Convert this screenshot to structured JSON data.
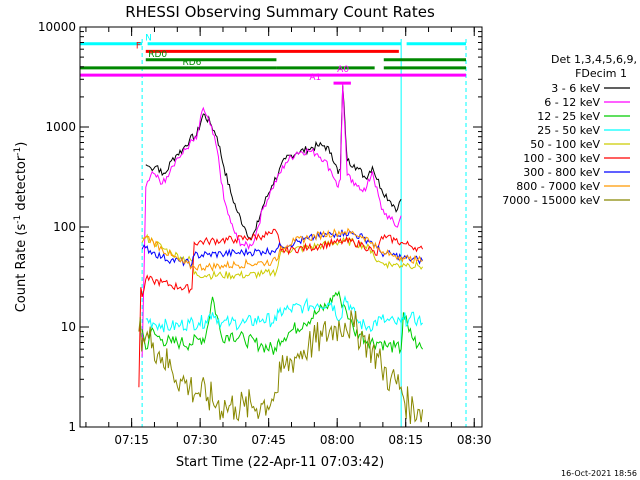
{
  "chart_data": {
    "type": "line",
    "title": "RHESSI Observing Summary Count Rates",
    "xlabel": "Start Time (22-Apr-11 07:03:42)",
    "ylabel": "Count Rate (s",
    "ylabel_sup1": "-1",
    "ylabel_mid": " detector",
    "ylabel_sup2": "-1",
    "ylabel_end": ")",
    "yscale": "log",
    "ylim": [
      1,
      10000
    ],
    "xlim_minutes": [
      0,
      88
    ],
    "x_ticks": [
      {
        "label": "07:15",
        "m": 11.3
      },
      {
        "label": "07:30",
        "m": 26.3
      },
      {
        "label": "07:45",
        "m": 41.3
      },
      {
        "label": "08:00",
        "m": 56.3
      },
      {
        "label": "08:15",
        "m": 71.3
      },
      {
        "label": "08:30",
        "m": 86.3
      }
    ],
    "y_ticks": [
      {
        "label": "1",
        "v": 1
      },
      {
        "label": "10",
        "v": 10
      },
      {
        "label": "100",
        "v": 100
      },
      {
        "label": "1000",
        "v": 1000
      },
      {
        "label": "10000",
        "v": 10000
      }
    ],
    "legend_header": [
      "Det 1,3,4,5,6,9,",
      "FDecim 1"
    ],
    "footer": "16-Oct-2021 18:56",
    "flags": [
      {
        "label": "N",
        "color": "#00ffff",
        "label_at": 15.0,
        "level": 6800,
        "segments": [
          [
            0,
            13.6
          ],
          [
            14.8,
            70.3
          ],
          [
            71.5,
            84.5
          ]
        ]
      },
      {
        "label": "F",
        "color": "#ff0000",
        "label_at": 12.8,
        "level": 5700,
        "segments": [
          [
            14.4,
            69.8
          ]
        ]
      },
      {
        "label": "RD0",
        "color": "#008800",
        "label_at": 17.0,
        "level": 4700,
        "segments": [
          [
            14.4,
            43.0
          ],
          [
            66.5,
            84.5
          ]
        ]
      },
      {
        "label": "RD6",
        "color": "#008800",
        "label_at": 24.5,
        "level": 3900,
        "segments": [
          [
            0,
            43.0
          ],
          [
            43.0,
            64.5
          ],
          [
            66.5,
            84.5
          ]
        ]
      },
      {
        "label": "A0",
        "color": "#ff00ff",
        "label_at": 57.6,
        "level": 3300,
        "segments": [
          [
            0,
            84.5
          ]
        ]
      },
      {
        "label": "A1",
        "color": "#ff00ff",
        "label_at": 51.5,
        "level": 2750,
        "segments": [
          [
            55.5,
            59.3
          ]
        ]
      }
    ],
    "saa_markers_minutes": [
      0,
      13.6,
      70.3,
      84.5
    ],
    "series": [
      {
        "name": "3 - 6 keV",
        "color": "#000000",
        "x": [
          14.4,
          15.5,
          17,
          18,
          19,
          20,
          21,
          22.5,
          24,
          25.5,
          27,
          28.5,
          30,
          31.5,
          33,
          34.5,
          36,
          37.5,
          38.5,
          40,
          42,
          45,
          47.5,
          50,
          52,
          53.5,
          55,
          56,
          56.5,
          57,
          57.5,
          58.5,
          60,
          61,
          62.5,
          64,
          66,
          68,
          69.5,
          70.3
        ],
        "y": [
          420,
          390,
          410,
          330,
          360,
          460,
          520,
          600,
          750,
          820,
          1350,
          1100,
          800,
          400,
          220,
          140,
          100,
          75,
          95,
          160,
          260,
          480,
          560,
          600,
          650,
          650,
          550,
          420,
          340,
          380,
          2600,
          460,
          420,
          380,
          310,
          400,
          240,
          180,
          150,
          190
        ]
      },
      {
        "name": "6 - 12 keV",
        "color": "#ff00ff",
        "x": [
          13.6,
          14.4,
          15.5,
          17,
          18,
          19,
          20,
          21,
          22.5,
          24,
          25.5,
          27,
          28.5,
          30,
          31.5,
          33,
          34.5,
          36,
          37.5,
          38.5,
          40,
          42,
          45,
          47.5,
          50,
          52,
          53.5,
          55,
          56,
          56.5,
          57,
          57.5,
          58.5,
          60,
          61,
          62.5,
          64,
          66,
          68,
          69.5,
          70.3
        ],
        "y": [
          5,
          250,
          330,
          330,
          270,
          320,
          400,
          470,
          540,
          680,
          760,
          1550,
          1050,
          600,
          190,
          110,
          75,
          65,
          65,
          85,
          150,
          240,
          440,
          560,
          580,
          540,
          470,
          360,
          290,
          250,
          300,
          2700,
          330,
          260,
          260,
          230,
          360,
          150,
          120,
          100,
          130
        ]
      },
      {
        "name": "12 - 25 keV",
        "color": "#00cc00",
        "x": [
          13.6,
          14.4,
          15.5,
          17,
          18,
          20,
          22,
          24,
          26,
          27.5,
          29,
          31,
          33,
          36,
          40,
          43,
          43.5,
          46,
          49,
          52,
          54.5,
          56,
          57,
          58,
          59,
          60,
          61.5,
          63,
          66,
          67,
          69,
          70.3,
          70.8,
          72,
          74,
          75
        ],
        "y": [
          9.5,
          6,
          9,
          8,
          7.5,
          7,
          7,
          6.8,
          7.5,
          8,
          20,
          8,
          8.5,
          7.5,
          6.5,
          5.8,
          7.5,
          9,
          11,
          14,
          17,
          22,
          19,
          16,
          12,
          9,
          8.5,
          7.2,
          7,
          6.5,
          6.3,
          6,
          14,
          9,
          6.5,
          6
        ]
      },
      {
        "name": "25 - 50 keV",
        "color": "#00ffff",
        "x": [
          14.4,
          16,
          18,
          20,
          22,
          24,
          26,
          27.5,
          29,
          31,
          33,
          36,
          40,
          43,
          43.5,
          46,
          49,
          52,
          55,
          57,
          58,
          59.5,
          61,
          63,
          66,
          67,
          69,
          70.3,
          70.8,
          72,
          74,
          75
        ],
        "y": [
          12,
          11,
          10.5,
          10,
          10.5,
          11,
          11,
          11.5,
          14,
          11,
          11,
          11,
          12,
          11.5,
          14,
          15,
          16,
          17,
          17.5,
          12,
          20,
          15,
          11,
          10,
          12,
          11.5,
          11,
          11,
          12,
          12,
          12,
          11
        ]
      },
      {
        "name": "50 - 100 keV",
        "color": "#cccc00",
        "x": [
          13.6,
          14.4,
          16,
          18,
          20,
          22,
          24.5,
          25,
          28,
          31,
          34,
          37,
          40,
          42,
          43,
          44,
          47,
          50,
          53,
          56,
          58,
          60,
          62,
          64,
          65,
          66,
          67,
          69,
          70.3,
          70.8,
          72,
          74,
          75
        ],
        "y": [
          70,
          78,
          72,
          62,
          55,
          50,
          46,
          34,
          33,
          33,
          33,
          33,
          34,
          35,
          36,
          58,
          60,
          62,
          66,
          70,
          72,
          70,
          66,
          58,
          45,
          44,
          43,
          42,
          41,
          43,
          42,
          41,
          40
        ]
      },
      {
        "name": "100 - 300 keV",
        "color": "#ff0000",
        "x": [
          12.9,
          13.3,
          13.6,
          14.4,
          16,
          18,
          20,
          22,
          24.5,
          25,
          28,
          31,
          34,
          37,
          40,
          42,
          43,
          44,
          47,
          50,
          53,
          56,
          58,
          60,
          62,
          64,
          65,
          66,
          67,
          69,
          70.3,
          70.8,
          72,
          74,
          75
        ],
        "y": [
          2.5,
          25,
          20,
          30,
          29,
          28,
          26,
          25,
          24,
          70,
          72,
          74,
          75,
          78,
          82,
          86,
          90,
          58,
          60,
          62,
          66,
          70,
          72,
          70,
          66,
          58,
          52,
          80,
          78,
          74,
          70,
          68,
          66,
          62,
          60
        ]
      },
      {
        "name": "300 - 800 keV",
        "color": "#0000ff",
        "x": [
          13.6,
          14.4,
          16,
          18,
          20,
          22,
          24.5,
          25,
          28,
          31,
          34,
          37,
          40,
          42,
          43,
          44,
          47,
          50,
          53,
          56,
          58,
          60,
          62,
          64,
          65,
          66,
          67,
          69,
          70.3,
          70.8,
          72,
          74,
          75
        ],
        "y": [
          60,
          62,
          56,
          50,
          47,
          45,
          43,
          52,
          53,
          54,
          55,
          56,
          57,
          58,
          60,
          65,
          70,
          76,
          82,
          86,
          88,
          85,
          78,
          70,
          62,
          55,
          54,
          52,
          50,
          49,
          48,
          47,
          46
        ]
      },
      {
        "name": "800 - 7000 keV",
        "color": "#ff9900",
        "x": [
          13.6,
          14.4,
          16,
          18,
          20,
          22,
          24.5,
          25,
          28,
          31,
          34,
          37,
          40,
          42,
          43,
          44,
          47,
          50,
          53,
          56,
          58,
          60,
          62,
          64,
          65,
          66,
          67,
          69,
          70.3,
          70.8,
          72,
          74,
          75
        ],
        "y": [
          78,
          80,
          72,
          60,
          52,
          45,
          40,
          40,
          40,
          41,
          42,
          43,
          44,
          45,
          46,
          64,
          72,
          78,
          84,
          88,
          90,
          86,
          80,
          70,
          62,
          55,
          54,
          52,
          50,
          49,
          48,
          47,
          46
        ]
      },
      {
        "name": "7000 - 15000 keV",
        "color": "#888800",
        "x": [
          12.9,
          14.4,
          16,
          18,
          20,
          22,
          24,
          26,
          28,
          30,
          32,
          34,
          36,
          38,
          40,
          42,
          43,
          44,
          47,
          50,
          53,
          56,
          58,
          60,
          62,
          64,
          66,
          68,
          70.3,
          70.8,
          72,
          74,
          75
        ],
        "y": [
          9,
          8,
          7,
          5,
          3.8,
          3,
          2.5,
          2.2,
          2,
          1.7,
          1.6,
          1.6,
          1.6,
          1.6,
          1.7,
          1.9,
          2.2,
          3.5,
          5,
          6.5,
          8,
          10,
          11,
          10,
          8,
          6,
          4,
          3,
          2.5,
          2,
          1.6,
          1.5,
          1.5
        ]
      }
    ]
  }
}
